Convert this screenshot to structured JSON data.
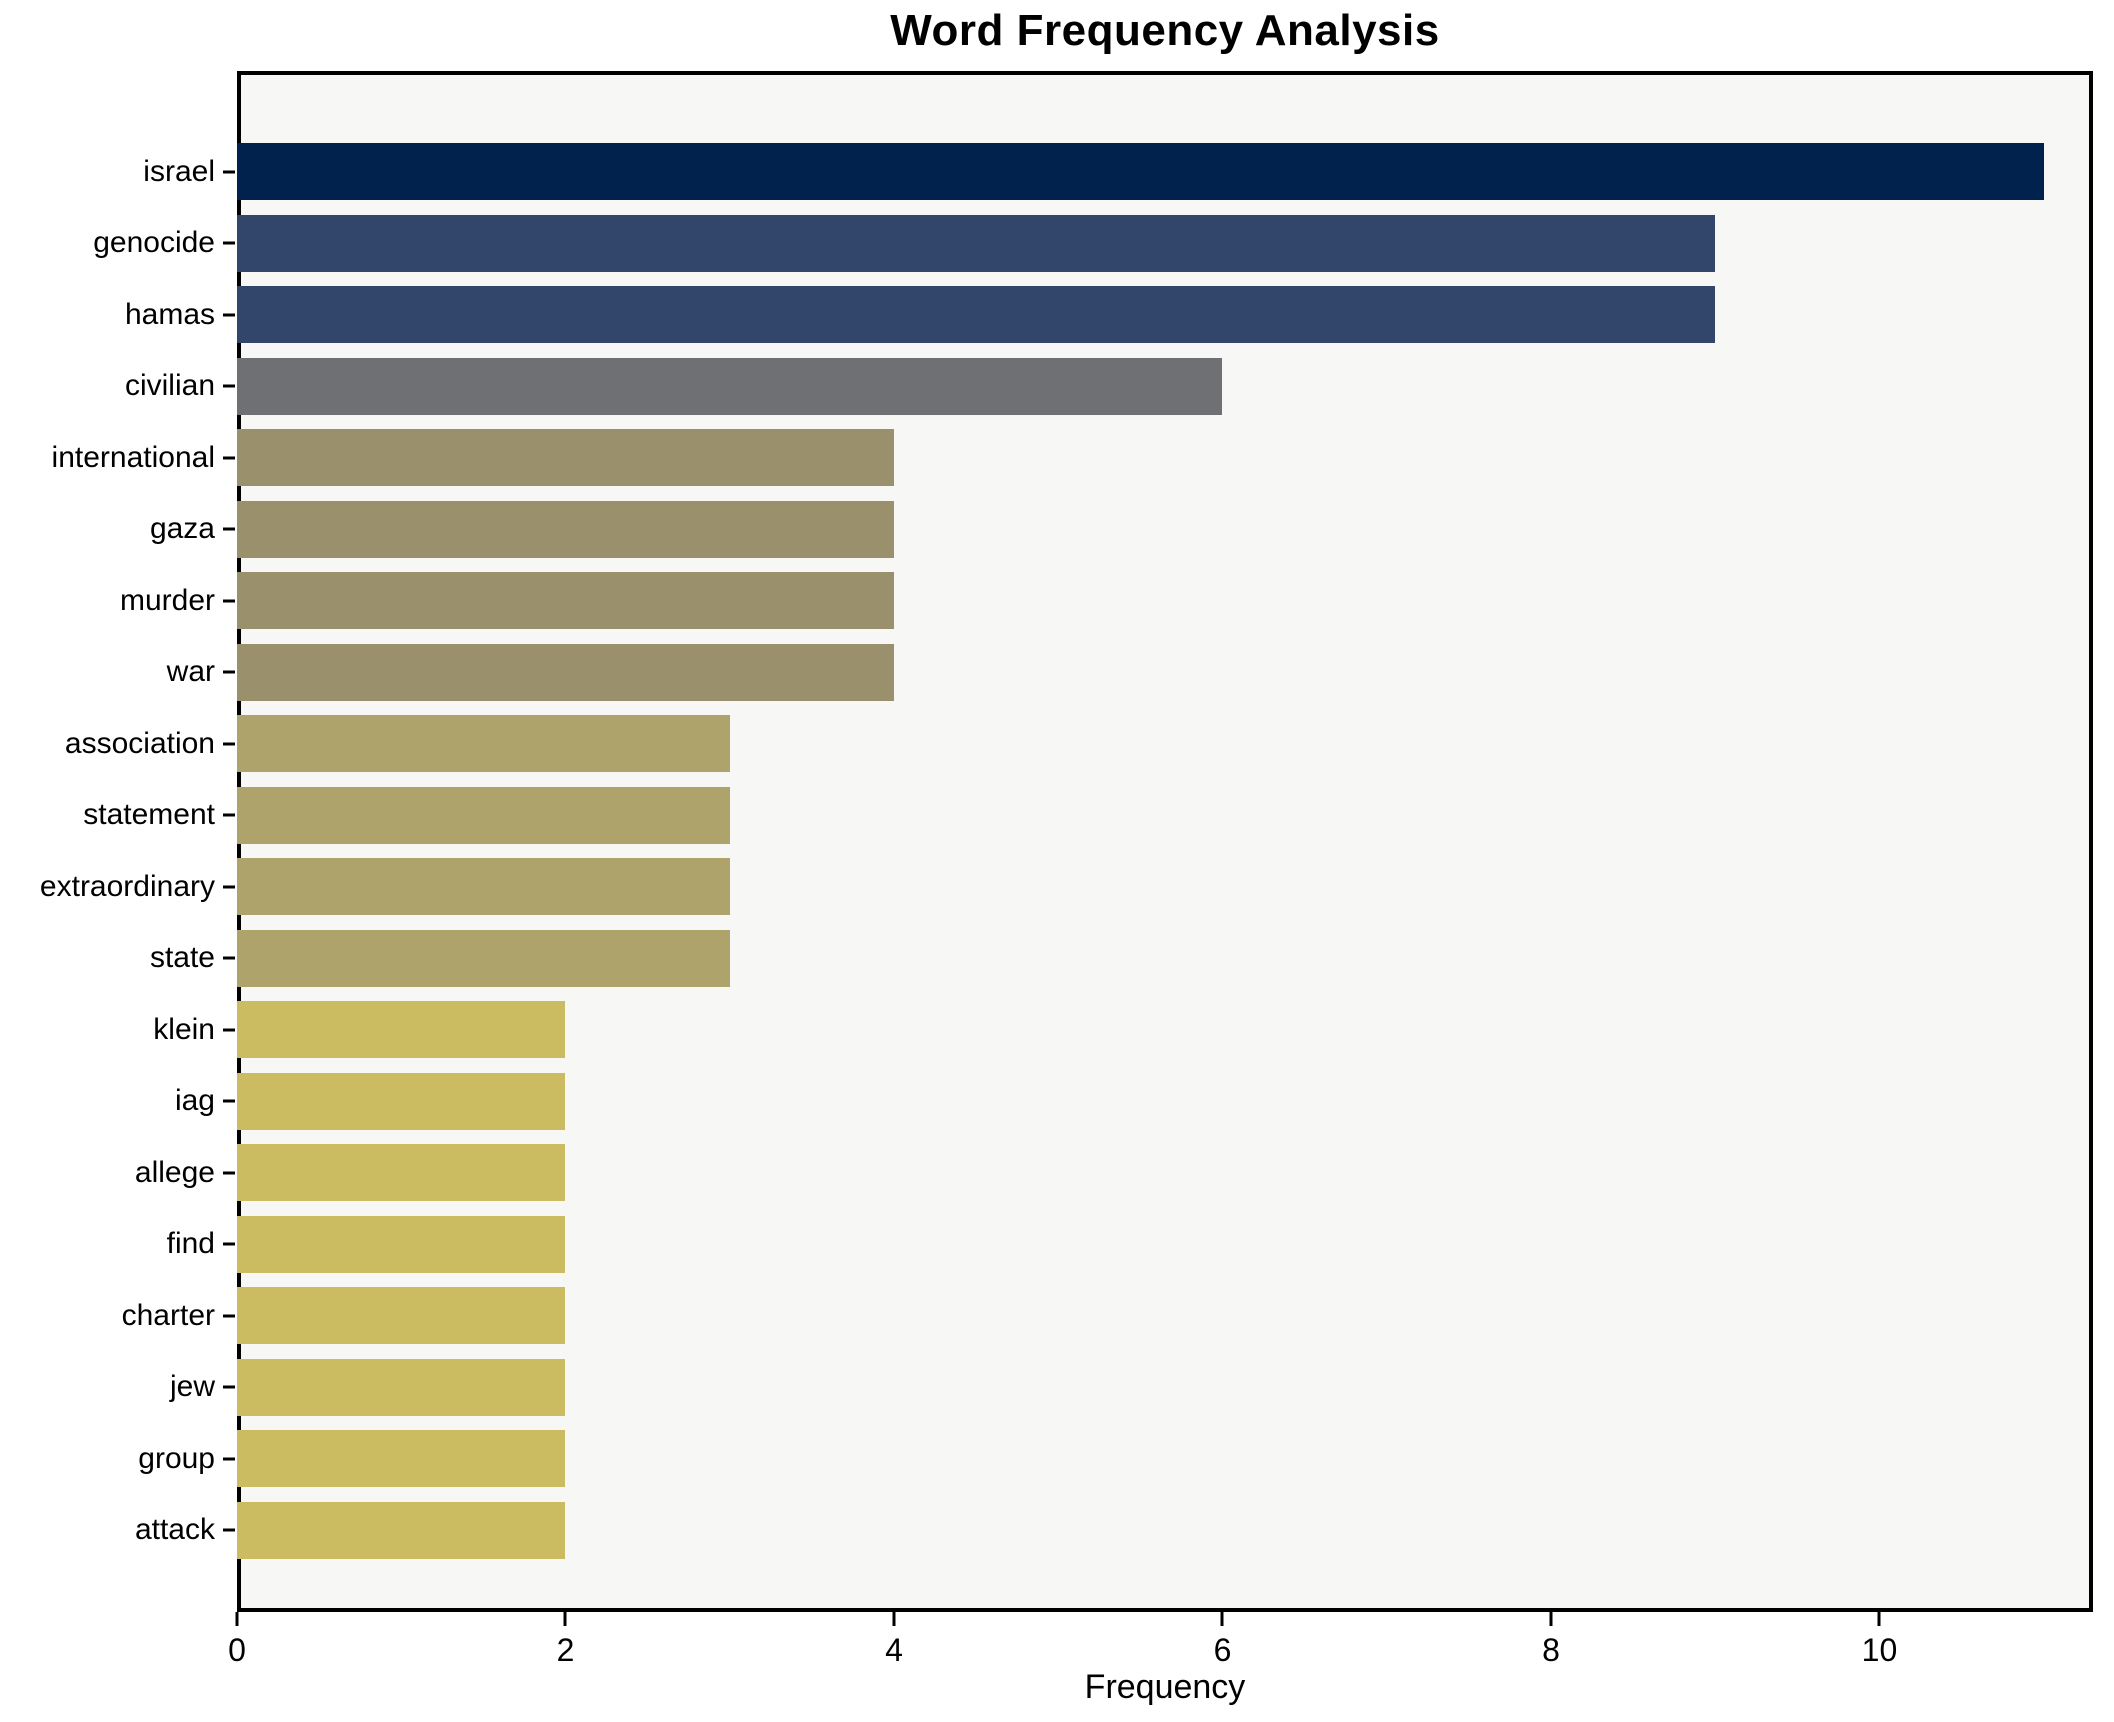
{
  "title": "Word Frequency Analysis",
  "chart_data": {
    "type": "bar",
    "orientation": "horizontal",
    "title": "Word Frequency Analysis",
    "xlabel": "Frequency",
    "ylabel": "",
    "categories": [
      "israel",
      "genocide",
      "hamas",
      "civilian",
      "international",
      "gaza",
      "murder",
      "war",
      "association",
      "statement",
      "extraordinary",
      "state",
      "klein",
      "iag",
      "allege",
      "find",
      "charter",
      "jew",
      "group",
      "attack"
    ],
    "values": [
      11,
      9,
      9,
      6,
      4,
      4,
      4,
      4,
      3,
      3,
      3,
      3,
      2,
      2,
      2,
      2,
      2,
      2,
      2,
      2
    ],
    "bar_colors": [
      "#02224e",
      "#32456b",
      "#32456b",
      "#6f7073",
      "#9a916c",
      "#9a916c",
      "#9a916c",
      "#9a916c",
      "#aea46b",
      "#aea46b",
      "#aea46b",
      "#aea46b",
      "#cbbc62",
      "#cbbc62",
      "#cbbc62",
      "#cbbc62",
      "#cbbc62",
      "#cbbc62",
      "#cbbc62",
      "#cbbc62"
    ],
    "xlim": [
      0,
      11.3
    ],
    "xticks": [
      0,
      2,
      4,
      6,
      8,
      10
    ],
    "grid": false,
    "legend": "none",
    "plot_background": "#f7f7f6",
    "spine_color": "#000000"
  }
}
